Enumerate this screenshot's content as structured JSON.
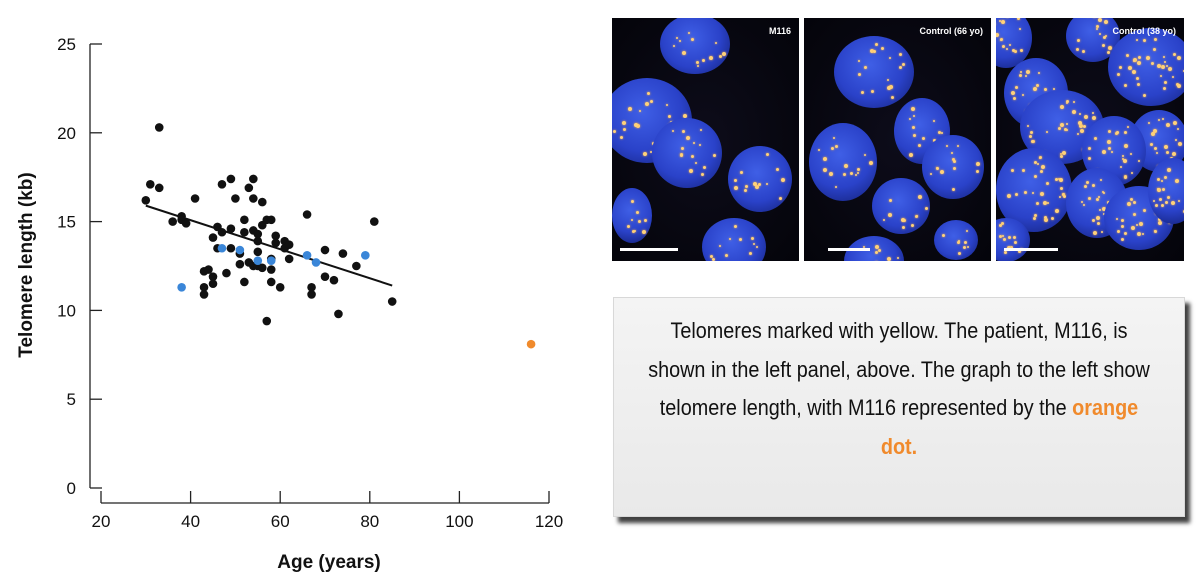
{
  "chart_data": {
    "type": "scatter",
    "xlabel": "Age (years)",
    "ylabel": "Telomere length (kb)",
    "xlim": [
      20,
      120
    ],
    "ylim": [
      0,
      25
    ],
    "xticks": [
      20,
      40,
      60,
      80,
      100,
      120
    ],
    "yticks": [
      0,
      5,
      10,
      15,
      20,
      25
    ],
    "grid": false,
    "series": [
      {
        "color": "#111111",
        "points": [
          [
            30,
            16.2
          ],
          [
            31,
            17.1
          ],
          [
            33,
            20.3
          ],
          [
            33,
            16.9
          ],
          [
            36,
            15.0
          ],
          [
            38,
            15.3
          ],
          [
            38,
            15.1
          ],
          [
            39,
            14.9
          ],
          [
            41,
            16.3
          ],
          [
            43,
            11.3
          ],
          [
            43,
            10.9
          ],
          [
            43,
            12.2
          ],
          [
            44,
            12.3
          ],
          [
            45,
            14.1
          ],
          [
            45,
            11.9
          ],
          [
            45,
            11.5
          ],
          [
            46,
            13.5
          ],
          [
            46,
            14.7
          ],
          [
            47,
            17.1
          ],
          [
            47,
            14.4
          ],
          [
            48,
            12.1
          ],
          [
            49,
            13.5
          ],
          [
            49,
            17.4
          ],
          [
            49,
            14.6
          ],
          [
            50,
            16.3
          ],
          [
            51,
            13.2
          ],
          [
            51,
            12.6
          ],
          [
            52,
            14.4
          ],
          [
            52,
            11.6
          ],
          [
            52,
            15.1
          ],
          [
            53,
            12.7
          ],
          [
            53,
            16.9
          ],
          [
            54,
            14.5
          ],
          [
            54,
            16.3
          ],
          [
            54,
            12.5
          ],
          [
            54,
            17.4
          ],
          [
            55,
            13.9
          ],
          [
            55,
            13.3
          ],
          [
            55,
            12.5
          ],
          [
            55,
            14.3
          ],
          [
            56,
            16.1
          ],
          [
            56,
            14.8
          ],
          [
            56,
            12.4
          ],
          [
            57,
            15.1
          ],
          [
            57,
            9.4
          ],
          [
            58,
            15.1
          ],
          [
            58,
            12.9
          ],
          [
            58,
            12.3
          ],
          [
            58,
            11.6
          ],
          [
            59,
            14.2
          ],
          [
            59,
            13.8
          ],
          [
            60,
            11.3
          ],
          [
            61,
            13.9
          ],
          [
            61,
            13.5
          ],
          [
            62,
            12.9
          ],
          [
            62,
            13.7
          ],
          [
            66,
            15.4
          ],
          [
            67,
            11.3
          ],
          [
            67,
            10.9
          ],
          [
            70,
            11.9
          ],
          [
            70,
            13.4
          ],
          [
            72,
            11.7
          ],
          [
            73,
            9.8
          ],
          [
            74,
            13.2
          ],
          [
            77,
            12.5
          ],
          [
            81,
            15.0
          ],
          [
            85,
            10.5
          ]
        ]
      },
      {
        "color": "#3a86d8",
        "points": [
          [
            38,
            11.3
          ],
          [
            47,
            13.5
          ],
          [
            51,
            13.4
          ],
          [
            55,
            12.8
          ],
          [
            58,
            12.8
          ],
          [
            66,
            13.1
          ],
          [
            68,
            12.7
          ],
          [
            79,
            13.1
          ]
        ]
      },
      {
        "color": "#f08a2c",
        "points": [
          [
            116,
            8.1
          ]
        ]
      }
    ],
    "trendline": {
      "x1": 30,
      "y1": 15.9,
      "x2": 85,
      "y2": 11.4
    }
  },
  "panels": [
    {
      "label": "M116"
    },
    {
      "label": "Control (66 yo)"
    },
    {
      "label": "Control (38 yo)"
    }
  ],
  "caption": {
    "text": "Telomeres marked with yellow. The patient, M116, is shown in the left panel, above. The graph to the left show telomere length, with M116 represented by the",
    "highlight": "orange dot.",
    "highlight_color": "#f08a2c"
  }
}
